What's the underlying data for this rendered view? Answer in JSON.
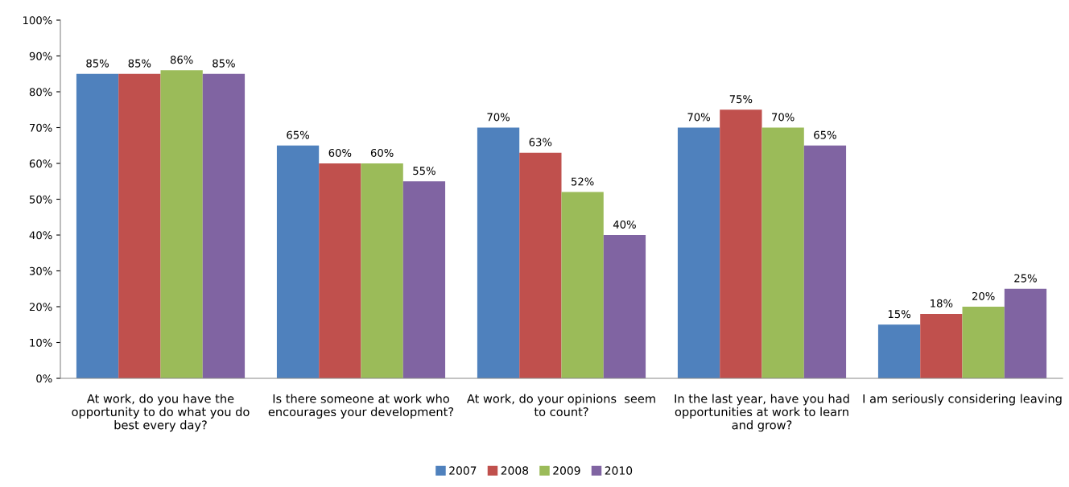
{
  "chart_data": {
    "type": "bar",
    "categories": [
      "At work, do you have the\nopportunity to do what you do\nbest every day?",
      "Is there someone at work who\nencourages your development?",
      "At work, do your opinions  seem\nto count?",
      "In the last year, have you had\nopportunities at work to learn\nand grow?",
      "I am seriously considering leaving"
    ],
    "series": [
      {
        "name": "2007",
        "color": "#4f81bd",
        "values": [
          85,
          65,
          70,
          70,
          15
        ],
        "value_labels": [
          "85%",
          "65%",
          "70%",
          "70%",
          "15%"
        ]
      },
      {
        "name": "2008",
        "color": "#c0504d",
        "values": [
          85,
          60,
          63,
          75,
          18
        ],
        "value_labels": [
          "85%",
          "60%",
          "63%",
          "75%",
          "18%"
        ]
      },
      {
        "name": "2009",
        "color": "#9bbb59",
        "values": [
          86,
          60,
          52,
          70,
          20
        ],
        "value_labels": [
          "86%",
          "60%",
          "52%",
          "70%",
          "20%"
        ]
      },
      {
        "name": "2010",
        "color": "#8064a2",
        "values": [
          85,
          55,
          40,
          65,
          25
        ],
        "value_labels": [
          "85%",
          "55%",
          "40%",
          "65%",
          "25%"
        ]
      }
    ],
    "ylim": [
      0,
      100
    ],
    "yticks": [
      {
        "value": 0,
        "label": "0%"
      },
      {
        "value": 10,
        "label": "10%"
      },
      {
        "value": 20,
        "label": "20%"
      },
      {
        "value": 30,
        "label": "30%"
      },
      {
        "value": 40,
        "label": "40%"
      },
      {
        "value": 50,
        "label": "50%"
      },
      {
        "value": 60,
        "label": "60%"
      },
      {
        "value": 70,
        "label": "70%"
      },
      {
        "value": 80,
        "label": "80%"
      },
      {
        "value": 90,
        "label": "90%"
      },
      {
        "value": 100,
        "label": "100%"
      }
    ],
    "grid": false,
    "legend": "bottom"
  }
}
